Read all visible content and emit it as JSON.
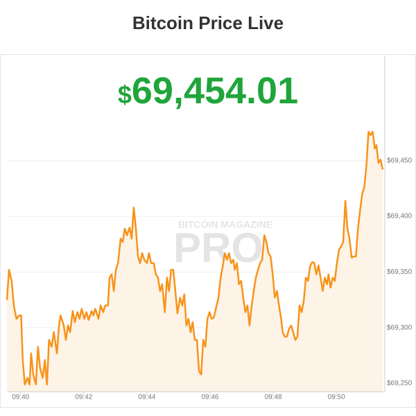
{
  "chart_data": {
    "type": "area",
    "title": "Bitcoin Price Live",
    "price": "$69,454.01",
    "watermark": [
      "BITCOIN MAGAZINE",
      "PRO"
    ],
    "color": "#f7931a",
    "fill_color": "#fdf3e6",
    "grid": true,
    "x": [
      -26,
      -22,
      -17,
      -13,
      -8,
      -3,
      1,
      4,
      8,
      13,
      17,
      20,
      24,
      29,
      33,
      37,
      42,
      46,
      50,
      54,
      59,
      63,
      69,
      73,
      76,
      82,
      86,
      90,
      94,
      99,
      103,
      108,
      112,
      116,
      121,
      125,
      129,
      135,
      138,
      142,
      148,
      152,
      157,
      161,
      166,
      169,
      173,
      177,
      181,
      185,
      190,
      194,
      198,
      202,
      207,
      211,
      215,
      219,
      223,
      227,
      231,
      235,
      240,
      244,
      248,
      253,
      257,
      261,
      265,
      269,
      274,
      278,
      282,
      286,
      290,
      294,
      298,
      303,
      307,
      311,
      315,
      319,
      323,
      327,
      331,
      335,
      339,
      343,
      347,
      351,
      355,
      359,
      363,
      367,
      371,
      376,
      380,
      384,
      388,
      392,
      396,
      400,
      404,
      407,
      411,
      415,
      419,
      423,
      427,
      431,
      435,
      439,
      443,
      447,
      451,
      455,
      459,
      463,
      467,
      471,
      475,
      479,
      483,
      487,
      491,
      495,
      498,
      502,
      506,
      510,
      514,
      518,
      522,
      526,
      530,
      534,
      538,
      542,
      546,
      550,
      554,
      558,
      562,
      566,
      570,
      574,
      578,
      582,
      585,
      589,
      593,
      597,
      601,
      605,
      609,
      613,
      617,
      621,
      625,
      629,
      633,
      637,
      641,
      645,
      649,
      653,
      657,
      661,
      665,
      669,
      673,
      676,
      680,
      684,
      688
    ],
    "values": [
      69325,
      69352,
      69342,
      69320,
      69308,
      69311,
      69311,
      69271,
      69249,
      69255,
      69249,
      69277,
      69258,
      69249,
      69283,
      69264,
      69255,
      69271,
      69249,
      69289,
      69283,
      69296,
      69277,
      69302,
      69311,
      69302,
      69289,
      69302,
      69296,
      69315,
      69305,
      69314,
      69308,
      69317,
      69308,
      69314,
      69307,
      69315,
      69311,
      69317,
      69308,
      69320,
      69314,
      69320,
      69320,
      69345,
      69348,
      69333,
      69352,
      69358,
      69380,
      69377,
      69389,
      69383,
      69390,
      69380,
      69408,
      69389,
      69364,
      69358,
      69367,
      69361,
      69358,
      69367,
      69358,
      69358,
      69348,
      69345,
      69333,
      69339,
      69314,
      69345,
      69333,
      69352,
      69352,
      69333,
      69313,
      69327,
      69320,
      69330,
      69302,
      69308,
      69296,
      69305,
      69289,
      69289,
      69261,
      69258,
      69289,
      69283,
      69308,
      69314,
      69308,
      69309,
      69317,
      69327,
      69345,
      69355,
      69367,
      69361,
      69367,
      69358,
      69361,
      69352,
      69358,
      69339,
      69342,
      69327,
      69314,
      69320,
      69302,
      69320,
      69333,
      69345,
      69352,
      69358,
      69361,
      69383,
      69377,
      69367,
      69364,
      69348,
      69327,
      69333,
      69320,
      69308,
      69296,
      69292,
      69292,
      69299,
      69302,
      69296,
      69289,
      69292,
      69320,
      69314,
      69324,
      69345,
      69342,
      69355,
      69359,
      69358,
      69348,
      69356,
      69345,
      69333,
      69345,
      69339,
      69348,
      69336,
      69345,
      69342,
      69358,
      69370,
      69373,
      69377,
      69414,
      69389,
      69380,
      69363,
      69364,
      69364,
      69389,
      69405,
      69420,
      69426,
      69445,
      69476,
      69473,
      69476,
      69461,
      69464,
      69448,
      69451,
      69442
    ],
    "xlim": [
      -26,
      692
    ],
    "xticks": [
      {
        "value": 0,
        "label": "09:40"
      },
      {
        "value": 120,
        "label": "09:42"
      },
      {
        "value": 240,
        "label": "09:44"
      },
      {
        "value": 360,
        "label": "09:46"
      },
      {
        "value": 480,
        "label": "09:48"
      },
      {
        "value": 600,
        "label": "09:50"
      }
    ],
    "ylim": [
      69242.5,
      69544.5
    ],
    "yticks": [
      {
        "value": 69250,
        "label": "$69,250"
      },
      {
        "value": 69300,
        "label": "$69,300"
      },
      {
        "value": 69350,
        "label": "$69,350"
      },
      {
        "value": 69400,
        "label": "$69,400"
      },
      {
        "value": 69450,
        "label": "$69,450"
      }
    ]
  }
}
